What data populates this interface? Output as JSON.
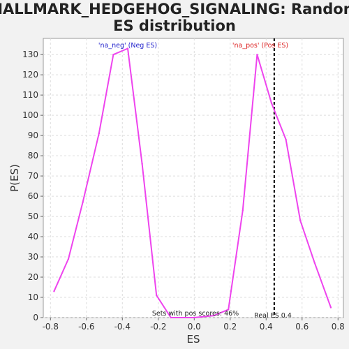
{
  "chart_data": {
    "type": "line",
    "title_line1": "HALLMARK_HEDGEHOG_SIGNALING: Random",
    "title_line2": "ES distribution",
    "xlabel": "ES",
    "ylabel": "P(ES)",
    "xlim": [
      -0.84,
      0.83
    ],
    "ylim": [
      0,
      138
    ],
    "xticks": [
      "-0.8",
      "-0.6",
      "-0.4",
      "-0.2",
      "0.0",
      "0.2",
      "0.4",
      "0.6",
      "0.8"
    ],
    "xtick_values": [
      -0.8,
      -0.6,
      -0.4,
      -0.2,
      0.0,
      0.2,
      0.4,
      0.6,
      0.8
    ],
    "yticks": [
      "0",
      "10",
      "20",
      "30",
      "40",
      "50",
      "60",
      "70",
      "80",
      "90",
      "100",
      "110",
      "120",
      "130"
    ],
    "ytick_values": [
      0,
      10,
      20,
      30,
      40,
      50,
      60,
      70,
      80,
      90,
      100,
      110,
      120,
      130
    ],
    "grid": true,
    "line_color": "#ee44ee",
    "series": [
      {
        "x": [
          -0.78,
          -0.7,
          -0.62,
          -0.53,
          -0.45,
          -0.37,
          -0.29,
          -0.21,
          -0.13,
          0.0,
          0.11,
          0.19,
          0.27,
          0.35,
          0.43,
          0.51,
          0.59,
          0.67,
          0.76
        ],
        "y": [
          13,
          29,
          57,
          91,
          130,
          133,
          76,
          11,
          0,
          0,
          1,
          4,
          53,
          130,
          106,
          88,
          48,
          27,
          5
        ]
      }
    ],
    "real_es": {
      "value": 0.445,
      "label": "Real ES 0.4",
      "color": "#000000"
    },
    "neg_label": {
      "text": "'na_neg' (Neg ES)",
      "color": "#2222cc"
    },
    "pos_label": {
      "text": "'na_pos' (Pos ES)",
      "color": "#dd2222"
    },
    "pos_scores_label": "Sets with pos scores: 46%"
  }
}
